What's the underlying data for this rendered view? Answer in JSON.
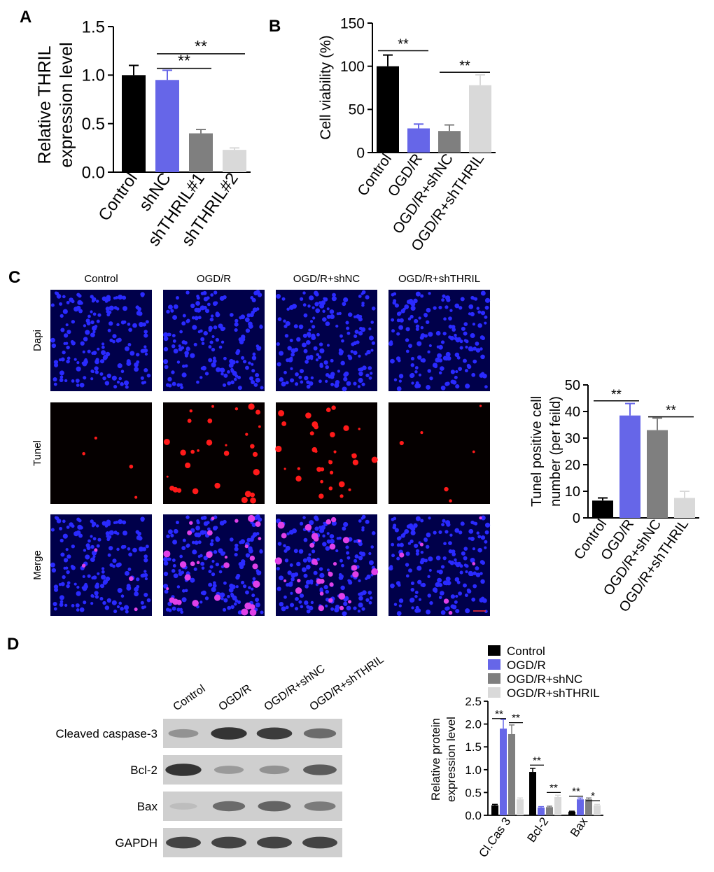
{
  "panels": {
    "a": "A",
    "b": "B",
    "c": "C",
    "d": "D"
  },
  "chart_data": [
    {
      "type": "bar",
      "panel": "A",
      "ylabel": [
        "Relative THRIL",
        "expression level"
      ],
      "categories": [
        "Control",
        "shNC",
        "shTHRIL#1",
        "shTHRIL#2"
      ],
      "values": [
        1.0,
        0.95,
        0.4,
        0.23
      ],
      "errors": [
        0.1,
        0.1,
        0.04,
        0.02
      ],
      "colors": [
        "#000000",
        "#6666e8",
        "#7f7f7f",
        "#d9d9d9"
      ],
      "ylim": [
        0,
        1.5
      ],
      "yticks": [
        "0.0",
        "0.5",
        "1.0",
        "1.5"
      ],
      "annotations": [
        {
          "from": 1,
          "to": 2,
          "y": 1.07,
          "label": "**"
        },
        {
          "from": 1,
          "to": 3,
          "y": 1.22,
          "label": "**"
        }
      ]
    },
    {
      "type": "bar",
      "panel": "B",
      "ylabel": [
        "Cell viability (%)"
      ],
      "categories": [
        "Control",
        "OGD/R",
        "OGD/R+shNC",
        "OGD/R+shTHRIL"
      ],
      "values": [
        100,
        28,
        25,
        78
      ],
      "errors": [
        13,
        5,
        7,
        12
      ],
      "colors": [
        "#000000",
        "#6666e8",
        "#7f7f7f",
        "#d9d9d9"
      ],
      "ylim": [
        0,
        150
      ],
      "yticks": [
        "0",
        "50",
        "100",
        "150"
      ],
      "annotations": [
        {
          "from": 0,
          "to": 1,
          "y": 118,
          "label": "**"
        },
        {
          "from": 2,
          "to": 3,
          "y": 93,
          "label": "**"
        }
      ]
    },
    {
      "type": "bar",
      "panel": "C",
      "ylabel": [
        "Tunel positive cell",
        "number (per feild)"
      ],
      "categories": [
        "Control",
        "OGD/R",
        "OGD/R+shNC",
        "OGD/R+shTHRIL"
      ],
      "values": [
        6.5,
        38.5,
        33,
        7.5
      ],
      "errors": [
        1.0,
        4.5,
        4.5,
        2.5
      ],
      "colors": [
        "#000000",
        "#6666e8",
        "#7f7f7f",
        "#d9d9d9"
      ],
      "ylim": [
        0,
        50
      ],
      "yticks": [
        "0",
        "10",
        "20",
        "30",
        "40",
        "50"
      ],
      "annotations": [
        {
          "from": 0,
          "to": 1,
          "y": 44,
          "label": "**"
        },
        {
          "from": 2,
          "to": 3,
          "y": 38,
          "label": "**"
        }
      ]
    },
    {
      "type": "bar",
      "panel": "D",
      "ylabel": [
        "Relative protein",
        "expression level"
      ],
      "categories": [
        "Cl.Cas 3",
        "Bcl-2",
        "Bax"
      ],
      "series": [
        {
          "name": "Control",
          "values": [
            0.22,
            0.95,
            0.08
          ],
          "errors": [
            0.02,
            0.08,
            0.01
          ],
          "color": "#000000"
        },
        {
          "name": "OGD/R",
          "values": [
            1.9,
            0.17,
            0.35
          ],
          "errors": [
            0.2,
            0.02,
            0.03
          ],
          "color": "#6666e8"
        },
        {
          "name": "OGD/R+shNC",
          "values": [
            1.78,
            0.18,
            0.35
          ],
          "errors": [
            0.2,
            0.02,
            0.03
          ],
          "color": "#7f7f7f"
        },
        {
          "name": "OGD/R+shTHRIL",
          "values": [
            0.35,
            0.4,
            0.22
          ],
          "errors": [
            0.03,
            0.04,
            0.02
          ],
          "color": "#d9d9d9"
        }
      ],
      "ylim": [
        0,
        2.5
      ],
      "yticks": [
        "0.0",
        "0.5",
        "1.0",
        "1.5",
        "2.0",
        "2.5"
      ],
      "legend_position": "top",
      "annotations": [
        {
          "group": 0,
          "from": 0,
          "to": 1,
          "y": 2.12,
          "label": "**"
        },
        {
          "group": 0,
          "from": 2,
          "to": 3,
          "y": 2.03,
          "label": "**"
        },
        {
          "group": 1,
          "from": 0,
          "to": 1,
          "y": 1.1,
          "label": "**"
        },
        {
          "group": 1,
          "from": 2,
          "to": 3,
          "y": 0.5,
          "label": "**"
        },
        {
          "group": 2,
          "from": 0,
          "to": 1,
          "y": 0.42,
          "label": "**"
        },
        {
          "group": 2,
          "from": 2,
          "to": 3,
          "y": 0.32,
          "label": "*"
        }
      ]
    }
  ],
  "microscopy": {
    "columns": [
      "Control",
      "OGD/R",
      "OGD/R+shNC",
      "OGD/R+shTHRIL"
    ],
    "rows": [
      "Dapi",
      "Tunel",
      "Merge"
    ]
  },
  "western_blot": {
    "lanes": [
      "Control",
      "OGD/R",
      "OGD/R+shNC",
      "OGD/R+shTHRIL"
    ],
    "bands": [
      {
        "name": "Cleaved caspase-3",
        "intensities": [
          0.35,
          0.95,
          0.9,
          0.6
        ]
      },
      {
        "name": "Bcl-2",
        "intensities": [
          0.95,
          0.3,
          0.35,
          0.7
        ]
      },
      {
        "name": "Bax",
        "intensities": [
          0.08,
          0.6,
          0.65,
          0.5
        ]
      },
      {
        "name": "GAPDH",
        "intensities": [
          0.85,
          0.85,
          0.85,
          0.85
        ]
      }
    ]
  }
}
